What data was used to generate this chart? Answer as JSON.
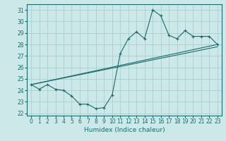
{
  "xlabel": "Humidex (Indice chaleur)",
  "ylabel": "",
  "bg_color": "#cce8e8",
  "grid_color": "#aacfcf",
  "line_color": "#1a6b6b",
  "xlim": [
    -0.5,
    23.5
  ],
  "ylim": [
    21.8,
    31.5
  ],
  "yticks": [
    22,
    23,
    24,
    25,
    26,
    27,
    28,
    29,
    30,
    31
  ],
  "xticks": [
    0,
    1,
    2,
    3,
    4,
    5,
    6,
    7,
    8,
    9,
    10,
    11,
    12,
    13,
    14,
    15,
    16,
    17,
    18,
    19,
    20,
    21,
    22,
    23
  ],
  "line1": {
    "x": [
      0,
      1,
      2,
      3,
      4,
      5,
      6,
      7,
      8,
      9,
      10,
      11,
      12,
      13,
      14,
      15,
      16,
      17,
      18,
      19,
      20,
      21,
      22,
      23
    ],
    "y": [
      24.5,
      24.1,
      24.5,
      24.1,
      24.0,
      23.5,
      22.8,
      22.8,
      22.4,
      22.5,
      23.6,
      27.2,
      28.5,
      29.1,
      28.5,
      31.0,
      30.5,
      28.8,
      28.5,
      29.2,
      28.7,
      28.7,
      28.7,
      28.0
    ]
  },
  "line2": {
    "x": [
      0,
      23
    ],
    "y": [
      24.5,
      27.8
    ]
  },
  "line3": {
    "x": [
      0,
      23
    ],
    "y": [
      24.5,
      28.0
    ]
  }
}
